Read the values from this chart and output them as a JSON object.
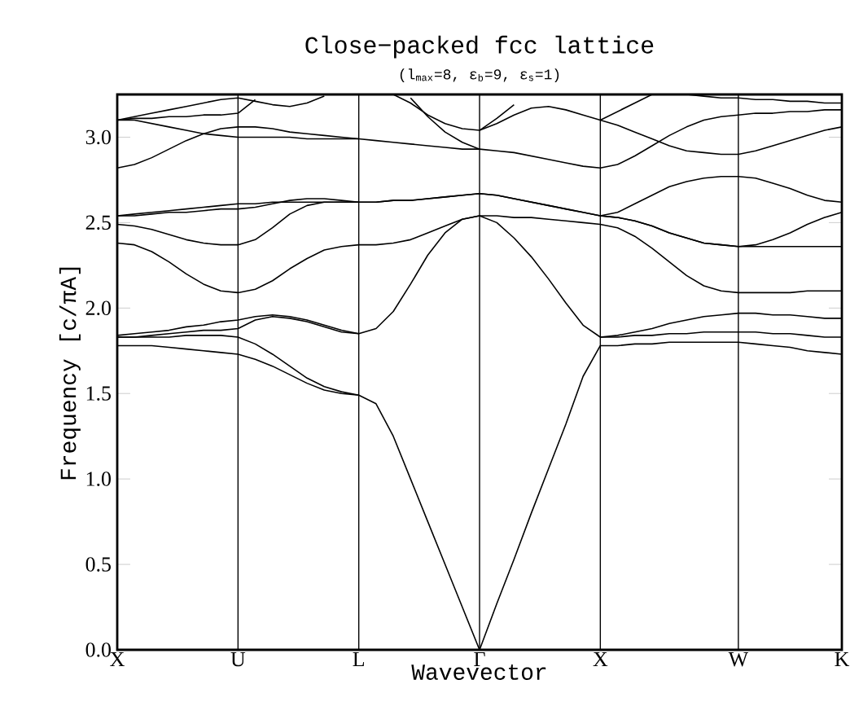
{
  "chart_data": {
    "type": "line",
    "title": "Close−packed fcc lattice",
    "subtitle": "(l$_{max}$=8,  ε$_{b}$=9,  ε$_{s}$=1)",
    "xlabel": "Wavevector",
    "ylabel": "Frequency  [c/πA]",
    "categories": [
      "X",
      null,
      null,
      null,
      null,
      null,
      null,
      "U",
      null,
      null,
      null,
      null,
      null,
      null,
      "L",
      null,
      null,
      null,
      null,
      null,
      null,
      "Γ",
      null,
      null,
      null,
      null,
      null,
      null,
      "X",
      null,
      null,
      null,
      null,
      null,
      null,
      null,
      "W",
      null,
      null,
      null,
      null,
      null,
      "K"
    ],
    "ylim": [
      0,
      3.25
    ],
    "yticks": [
      {
        "value": 0,
        "label": "0.0"
      },
      {
        "value": 0.5,
        "label": "0.5"
      },
      {
        "value": 1,
        "label": "1.0"
      },
      {
        "value": 1.5,
        "label": "1.5"
      },
      {
        "value": 2,
        "label": "2.0"
      },
      {
        "value": 2.5,
        "label": "2.5"
      },
      {
        "value": 3,
        "label": "3.0"
      }
    ],
    "grid": "x",
    "marker": "none",
    "line_style": "solid",
    "series": [
      {
        "color": "#000000",
        "values": [
          1.78,
          1.78,
          1.78,
          1.77,
          1.76,
          1.75,
          1.74,
          1.73,
          1.7,
          1.66,
          1.61,
          1.56,
          1.52,
          1.5,
          1.49,
          1.44,
          1.25,
          1.0,
          0.75,
          0.5,
          0.25,
          0,
          0.27,
          0.53,
          0.8,
          1.06,
          1.32,
          1.6,
          1.78,
          1.78,
          1.79,
          1.79,
          1.8,
          1.8,
          1.8,
          1.8,
          1.8,
          1.79,
          1.78,
          1.77,
          1.75,
          1.74,
          1.73
        ]
      },
      {
        "color": "#000000",
        "values": [
          1.83,
          1.83,
          1.83,
          1.83,
          1.84,
          1.84,
          1.84,
          1.83,
          1.79,
          1.73,
          1.66,
          1.59,
          1.54,
          1.51,
          1.49,
          null,
          null,
          null,
          null,
          null,
          null,
          null,
          null,
          null,
          null,
          null,
          null,
          null,
          null,
          null,
          null,
          null,
          null,
          null,
          null,
          null,
          null,
          null,
          null,
          null,
          null,
          null,
          null
        ]
      },
      {
        "color": "#000000",
        "values": [
          1.83,
          1.83,
          1.84,
          1.85,
          1.86,
          1.87,
          1.87,
          1.88,
          1.93,
          1.95,
          1.94,
          1.92,
          1.89,
          1.86,
          1.85,
          1.88,
          1.98,
          2.14,
          2.31,
          2.44,
          2.52,
          2.54,
          2.5,
          2.41,
          2.3,
          2.17,
          2.03,
          1.9,
          1.83,
          1.83,
          1.84,
          1.84,
          1.85,
          1.85,
          1.86,
          1.86,
          1.86,
          1.86,
          1.85,
          1.85,
          1.84,
          1.83,
          1.83
        ]
      },
      {
        "color": "#000000",
        "values": [
          1.84,
          1.85,
          1.86,
          1.87,
          1.89,
          1.9,
          1.92,
          1.93,
          1.95,
          1.96,
          1.95,
          1.93,
          1.9,
          1.87,
          1.85,
          null,
          null,
          null,
          null,
          null,
          null,
          null,
          null,
          null,
          null,
          null,
          null,
          null,
          null,
          null,
          null,
          null,
          null,
          null,
          null,
          null,
          null,
          null,
          null,
          null,
          null,
          null,
          null
        ]
      },
      {
        "color": "#000000",
        "values": [
          null,
          null,
          null,
          null,
          null,
          null,
          null,
          null,
          null,
          null,
          null,
          null,
          null,
          null,
          null,
          null,
          null,
          null,
          null,
          null,
          null,
          null,
          null,
          null,
          null,
          null,
          null,
          null,
          1.83,
          1.84,
          1.86,
          1.88,
          1.91,
          1.93,
          1.95,
          1.96,
          1.97,
          1.97,
          1.96,
          1.96,
          1.95,
          1.94,
          1.94
        ]
      },
      {
        "color": "#000000",
        "values": [
          2.38,
          2.37,
          2.33,
          2.27,
          2.2,
          2.14,
          2.1,
          2.09,
          2.11,
          2.16,
          2.23,
          2.29,
          2.34,
          2.36,
          2.37,
          2.37,
          2.38,
          2.4,
          2.44,
          2.48,
          2.52,
          2.54,
          2.54,
          2.53,
          2.53,
          2.52,
          2.51,
          2.5,
          2.49,
          2.47,
          2.42,
          2.35,
          2.27,
          2.19,
          2.13,
          2.1,
          2.09,
          2.09,
          2.09,
          2.09,
          2.1,
          2.1,
          2.1
        ]
      },
      {
        "color": "#000000",
        "values": [
          2.49,
          2.48,
          2.46,
          2.43,
          2.4,
          2.38,
          2.37,
          2.37,
          2.4,
          2.47,
          2.55,
          2.6,
          2.62,
          2.62,
          2.62,
          2.62,
          2.63,
          2.63,
          2.64,
          2.65,
          2.66,
          2.67,
          2.66,
          2.64,
          2.62,
          2.6,
          2.58,
          2.56,
          2.54,
          2.53,
          2.51,
          2.48,
          2.44,
          2.41,
          2.38,
          2.37,
          2.36,
          2.36,
          2.36,
          2.36,
          2.36,
          2.36,
          2.36
        ]
      },
      {
        "color": "#000000",
        "values": [
          2.54,
          2.54,
          2.55,
          2.56,
          2.56,
          2.57,
          2.58,
          2.58,
          2.59,
          2.61,
          2.63,
          2.64,
          2.64,
          2.63,
          2.62,
          2.62,
          2.63,
          2.63,
          2.64,
          2.65,
          2.66,
          2.67,
          2.66,
          2.64,
          2.62,
          2.6,
          2.58,
          2.56,
          2.54,
          2.56,
          2.61,
          2.66,
          2.71,
          2.74,
          2.76,
          2.77,
          2.77,
          2.76,
          2.73,
          2.7,
          2.66,
          2.63,
          2.62
        ]
      },
      {
        "color": "#000000",
        "values": [
          2.54,
          2.55,
          2.56,
          2.57,
          2.58,
          2.59,
          2.6,
          2.61,
          2.61,
          2.62,
          2.62,
          2.62,
          2.62,
          2.62,
          2.62,
          null,
          null,
          null,
          null,
          null,
          null,
          null,
          null,
          null,
          null,
          null,
          null,
          null,
          null,
          null,
          null,
          null,
          null,
          null,
          null,
          null,
          null,
          null,
          null,
          null,
          null,
          null,
          null
        ]
      },
      {
        "color": "#000000",
        "values": [
          null,
          null,
          null,
          null,
          null,
          null,
          null,
          null,
          null,
          null,
          null,
          null,
          null,
          null,
          null,
          null,
          null,
          null,
          null,
          null,
          null,
          null,
          null,
          null,
          null,
          null,
          null,
          null,
          2.54,
          2.53,
          2.51,
          2.48,
          2.44,
          2.41,
          2.38,
          2.37,
          2.36,
          2.37,
          2.4,
          2.44,
          2.49,
          2.53,
          2.56
        ]
      },
      {
        "color": "#000000",
        "values": [
          2.82,
          2.84,
          2.88,
          2.93,
          2.98,
          3.02,
          3.05,
          3.06,
          3.06,
          3.05,
          3.03,
          3.02,
          3.01,
          3.0,
          2.99,
          2.98,
          2.97,
          2.96,
          2.95,
          2.94,
          2.93,
          2.93,
          2.92,
          2.91,
          2.89,
          2.87,
          2.85,
          2.83,
          2.82,
          2.84,
          2.89,
          2.95,
          3.01,
          3.06,
          3.1,
          3.12,
          3.13,
          3.14,
          3.14,
          3.15,
          3.15,
          3.16,
          3.16
        ]
      },
      {
        "color": "#000000",
        "values": [
          3.1,
          3.1,
          3.08,
          3.06,
          3.04,
          3.02,
          3.01,
          3.0,
          3.0,
          3.0,
          3.0,
          2.99,
          2.99,
          2.99,
          2.99,
          null,
          null,
          null,
          null,
          null,
          null,
          null,
          null,
          null,
          null,
          null,
          null,
          null,
          null,
          null,
          null,
          null,
          null,
          null,
          null,
          null,
          null,
          null,
          null,
          null,
          null,
          null,
          null
        ]
      },
      {
        "color": "#000000",
        "values": [
          3.1,
          3.11,
          3.11,
          3.12,
          3.12,
          3.13,
          3.13,
          3.14,
          3.22,
          null,
          null,
          null,
          null,
          null,
          null,
          null,
          null,
          null,
          null,
          null,
          null,
          null,
          null,
          null,
          null,
          null,
          null,
          null,
          null,
          null,
          null,
          null,
          null,
          null,
          null,
          null,
          null,
          null,
          null,
          null,
          null,
          null,
          null
        ]
      },
      {
        "color": "#000000",
        "values": [
          3.1,
          3.12,
          3.14,
          3.16,
          3.18,
          3.2,
          3.22,
          3.23,
          3.21,
          3.19,
          3.18,
          3.2,
          3.24,
          null,
          null,
          null,
          null,
          null,
          null,
          null,
          null,
          null,
          null,
          null,
          null,
          null,
          null,
          null,
          null,
          null,
          null,
          null,
          null,
          null,
          null,
          null,
          null,
          null,
          null,
          null,
          null,
          null,
          null
        ]
      },
      {
        "color": "#000000",
        "values": [
          null,
          null,
          null,
          null,
          null,
          null,
          null,
          null,
          null,
          null,
          null,
          null,
          null,
          null,
          null,
          null,
          3.25,
          3.2,
          3.13,
          3.08,
          3.05,
          3.04,
          3.08,
          3.13,
          3.17,
          3.18,
          3.16,
          3.13,
          3.1,
          3.07,
          3.03,
          2.99,
          2.95,
          2.92,
          2.91,
          2.9,
          2.9,
          2.92,
          2.95,
          2.98,
          3.01,
          3.04,
          3.06
        ]
      },
      {
        "color": "#000000",
        "values": [
          null,
          null,
          null,
          null,
          null,
          null,
          null,
          null,
          null,
          null,
          null,
          null,
          null,
          null,
          null,
          null,
          null,
          3.23,
          3.12,
          3.03,
          2.97,
          2.93,
          null,
          null,
          null,
          null,
          null,
          null,
          null,
          null,
          null,
          null,
          null,
          null,
          null,
          null,
          null,
          null,
          null,
          null,
          null,
          null,
          null
        ]
      },
      {
        "color": "#000000",
        "values": [
          null,
          null,
          null,
          null,
          null,
          null,
          null,
          null,
          null,
          null,
          null,
          null,
          null,
          null,
          null,
          null,
          null,
          null,
          null,
          null,
          null,
          3.04,
          3.11,
          3.19,
          null,
          null,
          null,
          null,
          null,
          null,
          null,
          null,
          null,
          null,
          null,
          null,
          null,
          null,
          null,
          null,
          null,
          null,
          null
        ]
      },
      {
        "color": "#000000",
        "values": [
          null,
          null,
          null,
          null,
          null,
          null,
          null,
          null,
          null,
          null,
          null,
          null,
          null,
          null,
          null,
          null,
          null,
          null,
          null,
          null,
          null,
          null,
          null,
          null,
          null,
          null,
          null,
          null,
          3.1,
          3.15,
          3.2,
          3.25,
          null,
          null,
          null,
          null,
          null,
          null,
          null,
          null,
          null,
          null,
          null
        ]
      },
      {
        "color": "#000000",
        "values": [
          null,
          null,
          null,
          null,
          null,
          null,
          null,
          null,
          null,
          null,
          null,
          null,
          null,
          null,
          null,
          null,
          null,
          null,
          null,
          null,
          null,
          null,
          null,
          null,
          null,
          null,
          null,
          null,
          null,
          null,
          null,
          null,
          null,
          3.25,
          3.24,
          3.23,
          3.23,
          3.22,
          3.22,
          3.21,
          3.21,
          3.2,
          3.2
        ]
      }
    ]
  }
}
